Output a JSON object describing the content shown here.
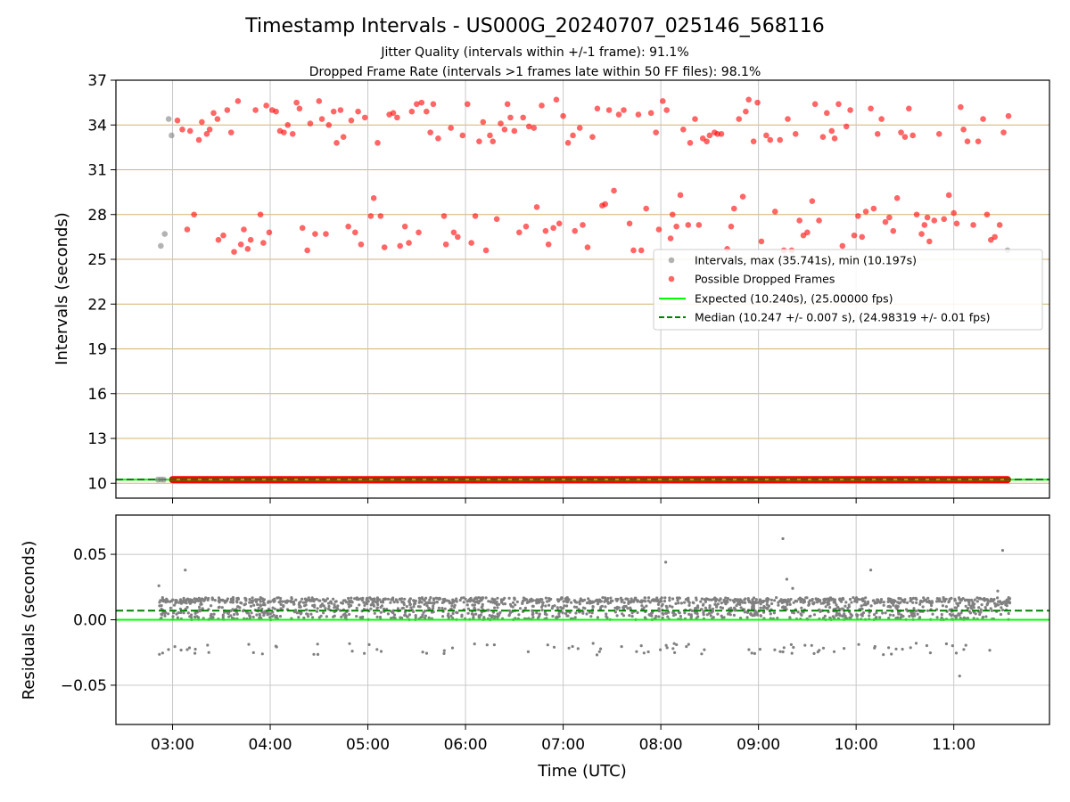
{
  "chart_data": [
    {
      "type": "scatter",
      "title": "Timestamp Intervals - US000G_20240707_025146_568116",
      "subtitle_1": "Jitter Quality (intervals within +/-1 frame): 91.1%",
      "subtitle_2": "Dropped Frame Rate (intervals >1 frames late within 50 FF files): 98.1%",
      "ylabel": "Intervals (seconds)",
      "xlim_hours": [
        2.42,
        11.98
      ],
      "ylim": [
        9.0,
        37.0
      ],
      "x_ticks": [
        "03:00",
        "04:00",
        "05:00",
        "06:00",
        "07:00",
        "08:00",
        "09:00",
        "10:00",
        "11:00"
      ],
      "y_ticks": [
        "10",
        "13",
        "16",
        "19",
        "22",
        "25",
        "28",
        "31",
        "34",
        "37"
      ],
      "y_tick_values": [
        10,
        13,
        16,
        19,
        22,
        25,
        28,
        31,
        34,
        37
      ],
      "grid": true,
      "legend_position": "center-right",
      "legend": [
        {
          "label": "Intervals, max (35.741s), min (10.197s)",
          "color": "#808080",
          "marker": "dot"
        },
        {
          "label": "Possible Dropped Frames",
          "color": "#ff0000",
          "marker": "dot"
        },
        {
          "label": "Expected (10.240s), (25.00000 fps)",
          "color": "#00ff00",
          "marker": "line"
        },
        {
          "label": "Median (10.247 +/- 0.007 s), (24.98319 +/- 0.01 fps)",
          "color": "#008000",
          "marker": "dashed"
        }
      ],
      "series": [
        {
          "name": "Intervals, max (35.741s), min (10.197s)",
          "color": "#808080",
          "points": [
            [
              2.85,
              10.24
            ],
            [
              2.88,
              10.25
            ],
            [
              2.91,
              10.24
            ],
            [
              2.88,
              25.9
            ],
            [
              2.92,
              26.7
            ],
            [
              2.96,
              34.4
            ],
            [
              2.99,
              33.3
            ],
            [
              11.55,
              25.6
            ]
          ]
        },
        {
          "name": "Possible Dropped Frames",
          "color": "#ff0000",
          "band": {
            "x_from": 3.0,
            "x_to": 11.55,
            "y": 10.24
          },
          "points": [
            [
              3.05,
              34.3
            ],
            [
              3.1,
              33.7
            ],
            [
              3.15,
              27.0
            ],
            [
              3.18,
              33.6
            ],
            [
              3.22,
              28.0
            ],
            [
              3.27,
              33.0
            ],
            [
              3.3,
              34.2
            ],
            [
              3.35,
              33.4
            ],
            [
              3.38,
              33.7
            ],
            [
              3.42,
              34.8
            ],
            [
              3.46,
              34.4
            ],
            [
              3.47,
              26.3
            ],
            [
              3.52,
              26.6
            ],
            [
              3.56,
              35.0
            ],
            [
              3.6,
              33.5
            ],
            [
              3.63,
              25.5
            ],
            [
              3.67,
              35.6
            ],
            [
              3.7,
              26.0
            ],
            [
              3.73,
              27.0
            ],
            [
              3.77,
              25.7
            ],
            [
              3.8,
              26.3
            ],
            [
              3.85,
              35.0
            ],
            [
              3.9,
              28.0
            ],
            [
              3.93,
              26.1
            ],
            [
              3.96,
              35.3
            ],
            [
              3.99,
              26.8
            ],
            [
              4.02,
              35.0
            ],
            [
              4.06,
              34.9
            ],
            [
              4.1,
              33.6
            ],
            [
              4.14,
              33.5
            ],
            [
              4.18,
              34.0
            ],
            [
              4.23,
              33.4
            ],
            [
              4.27,
              35.5
            ],
            [
              4.3,
              35.1
            ],
            [
              4.33,
              27.1
            ],
            [
              4.38,
              25.6
            ],
            [
              4.41,
              34.1
            ],
            [
              4.46,
              26.7
            ],
            [
              4.5,
              35.6
            ],
            [
              4.53,
              34.4
            ],
            [
              4.57,
              26.7
            ],
            [
              4.6,
              34.0
            ],
            [
              4.65,
              34.9
            ],
            [
              4.68,
              32.8
            ],
            [
              4.72,
              35.0
            ],
            [
              4.75,
              33.2
            ],
            [
              4.8,
              27.2
            ],
            [
              4.83,
              34.3
            ],
            [
              4.87,
              26.8
            ],
            [
              4.9,
              34.9
            ],
            [
              4.93,
              26.0
            ],
            [
              4.97,
              34.5
            ],
            [
              5.03,
              27.9
            ],
            [
              5.06,
              29.1
            ],
            [
              5.1,
              32.8
            ],
            [
              5.13,
              27.9
            ],
            [
              5.17,
              25.8
            ],
            [
              5.22,
              34.7
            ],
            [
              5.26,
              34.8
            ],
            [
              5.3,
              34.5
            ],
            [
              5.33,
              25.9
            ],
            [
              5.38,
              27.2
            ],
            [
              5.42,
              26.1
            ],
            [
              5.45,
              34.9
            ],
            [
              5.5,
              35.4
            ],
            [
              5.52,
              26.8
            ],
            [
              5.55,
              35.5
            ],
            [
              5.6,
              34.9
            ],
            [
              5.64,
              33.5
            ],
            [
              5.67,
              35.4
            ],
            [
              5.72,
              33.1
            ],
            [
              5.78,
              27.9
            ],
            [
              5.8,
              26.0
            ],
            [
              5.85,
              33.8
            ],
            [
              5.88,
              26.8
            ],
            [
              5.92,
              26.5
            ],
            [
              5.97,
              33.3
            ],
            [
              6.02,
              35.4
            ],
            [
              6.06,
              26.1
            ],
            [
              6.1,
              27.9
            ],
            [
              6.14,
              32.9
            ],
            [
              6.18,
              34.2
            ],
            [
              6.21,
              25.6
            ],
            [
              6.25,
              33.3
            ],
            [
              6.28,
              32.9
            ],
            [
              6.32,
              27.7
            ],
            [
              6.36,
              34.1
            ],
            [
              6.4,
              33.7
            ],
            [
              6.43,
              35.4
            ],
            [
              6.46,
              34.5
            ],
            [
              6.5,
              33.6
            ],
            [
              6.55,
              26.8
            ],
            [
              6.59,
              34.5
            ],
            [
              6.62,
              27.2
            ],
            [
              6.65,
              33.9
            ],
            [
              6.7,
              33.8
            ],
            [
              6.73,
              28.5
            ],
            [
              6.78,
              35.3
            ],
            [
              6.82,
              26.9
            ],
            [
              6.85,
              26.0
            ],
            [
              6.9,
              27.1
            ],
            [
              6.93,
              35.7
            ],
            [
              6.96,
              27.4
            ],
            [
              7.0,
              34.6
            ],
            [
              7.05,
              32.8
            ],
            [
              7.1,
              33.3
            ],
            [
              7.12,
              26.9
            ],
            [
              7.17,
              33.8
            ],
            [
              7.2,
              27.3
            ],
            [
              7.25,
              25.8
            ],
            [
              7.3,
              33.2
            ],
            [
              7.35,
              35.1
            ],
            [
              7.4,
              28.6
            ],
            [
              7.43,
              28.7
            ],
            [
              7.47,
              35.0
            ],
            [
              7.52,
              29.6
            ],
            [
              7.57,
              34.7
            ],
            [
              7.62,
              35.0
            ],
            [
              7.68,
              27.4
            ],
            [
              7.72,
              25.6
            ],
            [
              7.77,
              34.7
            ],
            [
              7.8,
              25.6
            ],
            [
              7.85,
              28.4
            ],
            [
              7.9,
              34.8
            ],
            [
              7.95,
              33.5
            ],
            [
              7.98,
              27.0
            ],
            [
              8.02,
              35.6
            ],
            [
              8.06,
              35.0
            ],
            [
              8.1,
              26.4
            ],
            [
              8.12,
              28.0
            ],
            [
              8.16,
              27.2
            ],
            [
              8.2,
              29.3
            ],
            [
              8.23,
              33.7
            ],
            [
              8.28,
              27.3
            ],
            [
              8.3,
              32.8
            ],
            [
              8.35,
              34.4
            ],
            [
              8.39,
              27.3
            ],
            [
              8.43,
              33.1
            ],
            [
              8.47,
              32.9
            ],
            [
              8.5,
              33.3
            ],
            [
              8.55,
              33.5
            ],
            [
              8.58,
              33.4
            ],
            [
              8.62,
              33.4
            ],
            [
              8.68,
              25.7
            ],
            [
              8.72,
              27.2
            ],
            [
              8.75,
              28.4
            ],
            [
              8.8,
              34.4
            ],
            [
              8.84,
              29.2
            ],
            [
              8.87,
              34.9
            ],
            [
              8.9,
              35.7
            ],
            [
              8.95,
              32.9
            ],
            [
              8.99,
              35.5
            ],
            [
              9.03,
              26.2
            ],
            [
              9.08,
              33.3
            ],
            [
              9.12,
              33.0
            ],
            [
              9.17,
              28.2
            ],
            [
              9.22,
              33.0
            ],
            [
              9.26,
              25.6
            ],
            [
              9.3,
              34.4
            ],
            [
              9.34,
              25.6
            ],
            [
              9.38,
              33.4
            ],
            [
              9.42,
              27.6
            ],
            [
              9.46,
              26.6
            ],
            [
              9.5,
              26.8
            ],
            [
              9.55,
              28.9
            ],
            [
              9.58,
              35.4
            ],
            [
              9.62,
              27.6
            ],
            [
              9.66,
              33.2
            ],
            [
              9.7,
              34.8
            ],
            [
              9.75,
              33.6
            ],
            [
              9.78,
              33.1
            ],
            [
              9.82,
              35.4
            ],
            [
              9.86,
              25.9
            ],
            [
              9.9,
              33.9
            ],
            [
              9.94,
              35.0
            ],
            [
              9.98,
              26.6
            ],
            [
              10.02,
              27.9
            ],
            [
              10.06,
              26.5
            ],
            [
              10.1,
              28.2
            ],
            [
              10.15,
              35.1
            ],
            [
              10.18,
              28.4
            ],
            [
              10.22,
              33.4
            ],
            [
              10.26,
              34.4
            ],
            [
              10.3,
              27.5
            ],
            [
              10.34,
              27.8
            ],
            [
              10.38,
              26.9
            ],
            [
              10.42,
              29.1
            ],
            [
              10.46,
              33.5
            ],
            [
              10.5,
              33.2
            ],
            [
              10.54,
              35.1
            ],
            [
              10.58,
              33.3
            ],
            [
              10.62,
              28.0
            ],
            [
              10.67,
              26.7
            ],
            [
              10.7,
              27.3
            ],
            [
              10.73,
              27.8
            ],
            [
              10.75,
              26.2
            ],
            [
              10.8,
              27.6
            ],
            [
              10.85,
              33.4
            ],
            [
              10.9,
              27.7
            ],
            [
              10.95,
              29.3
            ],
            [
              11.0,
              28.1
            ],
            [
              11.03,
              27.4
            ],
            [
              11.07,
              35.2
            ],
            [
              11.1,
              33.7
            ],
            [
              11.14,
              32.9
            ],
            [
              11.2,
              27.3
            ],
            [
              11.25,
              32.9
            ],
            [
              11.3,
              34.4
            ],
            [
              11.34,
              28.0
            ],
            [
              11.38,
              26.3
            ],
            [
              11.42,
              26.5
            ],
            [
              11.47,
              27.3
            ],
            [
              11.51,
              33.5
            ],
            [
              11.56,
              34.6
            ]
          ]
        }
      ],
      "expected_line": {
        "name": "Expected (10.240s), (25.00000 fps)",
        "y": 10.24,
        "color": "#00ff00"
      },
      "median_line": {
        "name": "Median (10.247 +/- 0.007 s), (24.98319 +/- 0.01 fps)",
        "y": 10.247,
        "color": "#008000"
      }
    },
    {
      "type": "scatter",
      "ylabel": "Residuals (seconds)",
      "xlabel": "Time (UTC)",
      "xlim_hours": [
        2.42,
        11.98
      ],
      "ylim": [
        -0.08,
        0.08
      ],
      "x_ticks": [
        "03:00",
        "04:00",
        "05:00",
        "06:00",
        "07:00",
        "08:00",
        "09:00",
        "10:00",
        "11:00"
      ],
      "y_ticks": [
        "0.05",
        "0.00",
        "−0.05"
      ],
      "y_tick_values": [
        0.05,
        0.0,
        -0.05
      ],
      "grid": true,
      "series": [
        {
          "name": "Residuals",
          "color": "#808080",
          "distribution": {
            "x_from": 2.86,
            "x_to": 11.58,
            "main_band": [
              0.0,
              0.016
            ],
            "low_band": [
              -0.027,
              -0.018
            ]
          },
          "outliers": [
            [
              2.86,
              0.026
            ],
            [
              3.13,
              0.038
            ],
            [
              8.05,
              0.044
            ],
            [
              9.25,
              0.062
            ],
            [
              9.29,
              0.031
            ],
            [
              9.35,
              0.024
            ],
            [
              10.15,
              0.038
            ],
            [
              11.06,
              -0.043
            ],
            [
              11.5,
              0.053
            ],
            [
              11.45,
              0.022
            ]
          ]
        }
      ],
      "expected_line": {
        "y": 0.0,
        "color": "#00ff00"
      },
      "median_line": {
        "y": 0.007,
        "color": "#008000"
      }
    }
  ]
}
